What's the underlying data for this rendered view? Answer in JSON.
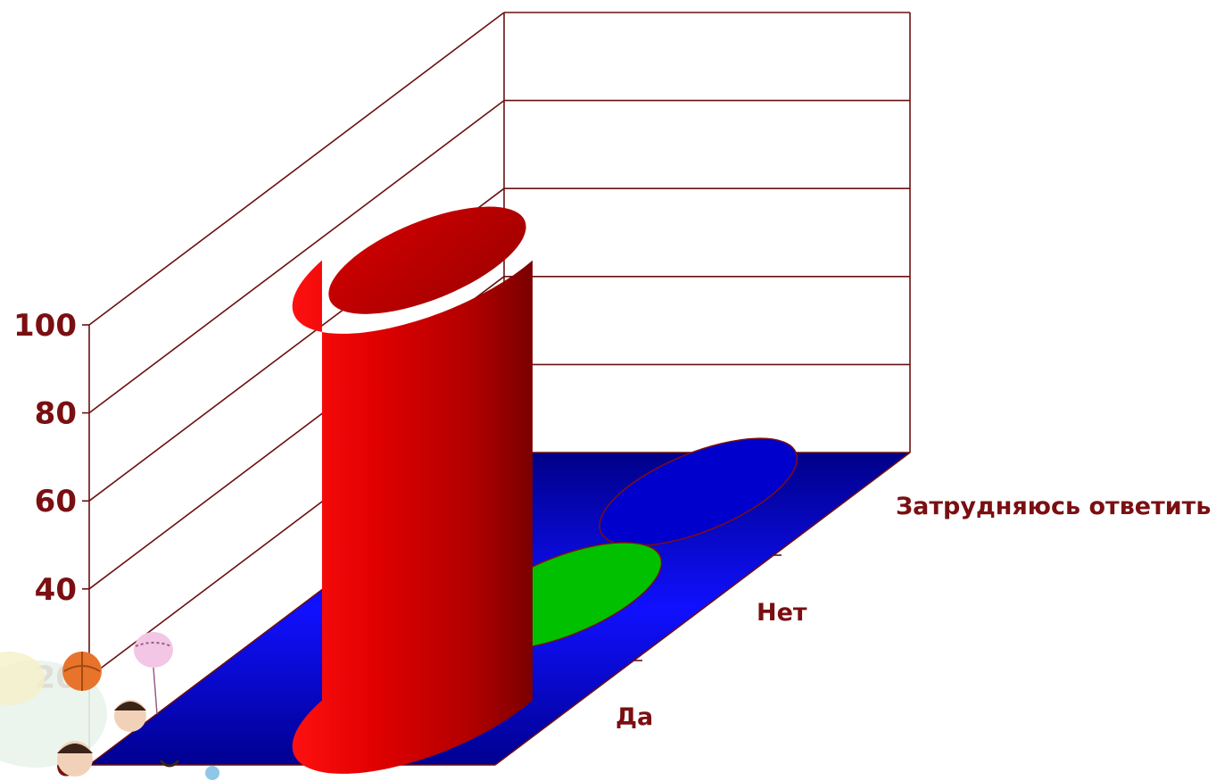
{
  "chart_data": {
    "type": "bar",
    "style": "3d-cylinder",
    "categories": [
      "Да",
      "Нет",
      "Затрудняюсь ответить"
    ],
    "values": [
      100,
      0,
      0
    ],
    "colors": [
      "#e00000",
      "#00c000",
      "#0000cc"
    ],
    "yticks": [
      "0",
      "20",
      "40",
      "60",
      "80",
      "100"
    ],
    "ylim": [
      0,
      100
    ],
    "grid": true,
    "floor_color": "#0000aa",
    "wall_line_color": "#6a1010",
    "text_color": "#7a0f12"
  }
}
